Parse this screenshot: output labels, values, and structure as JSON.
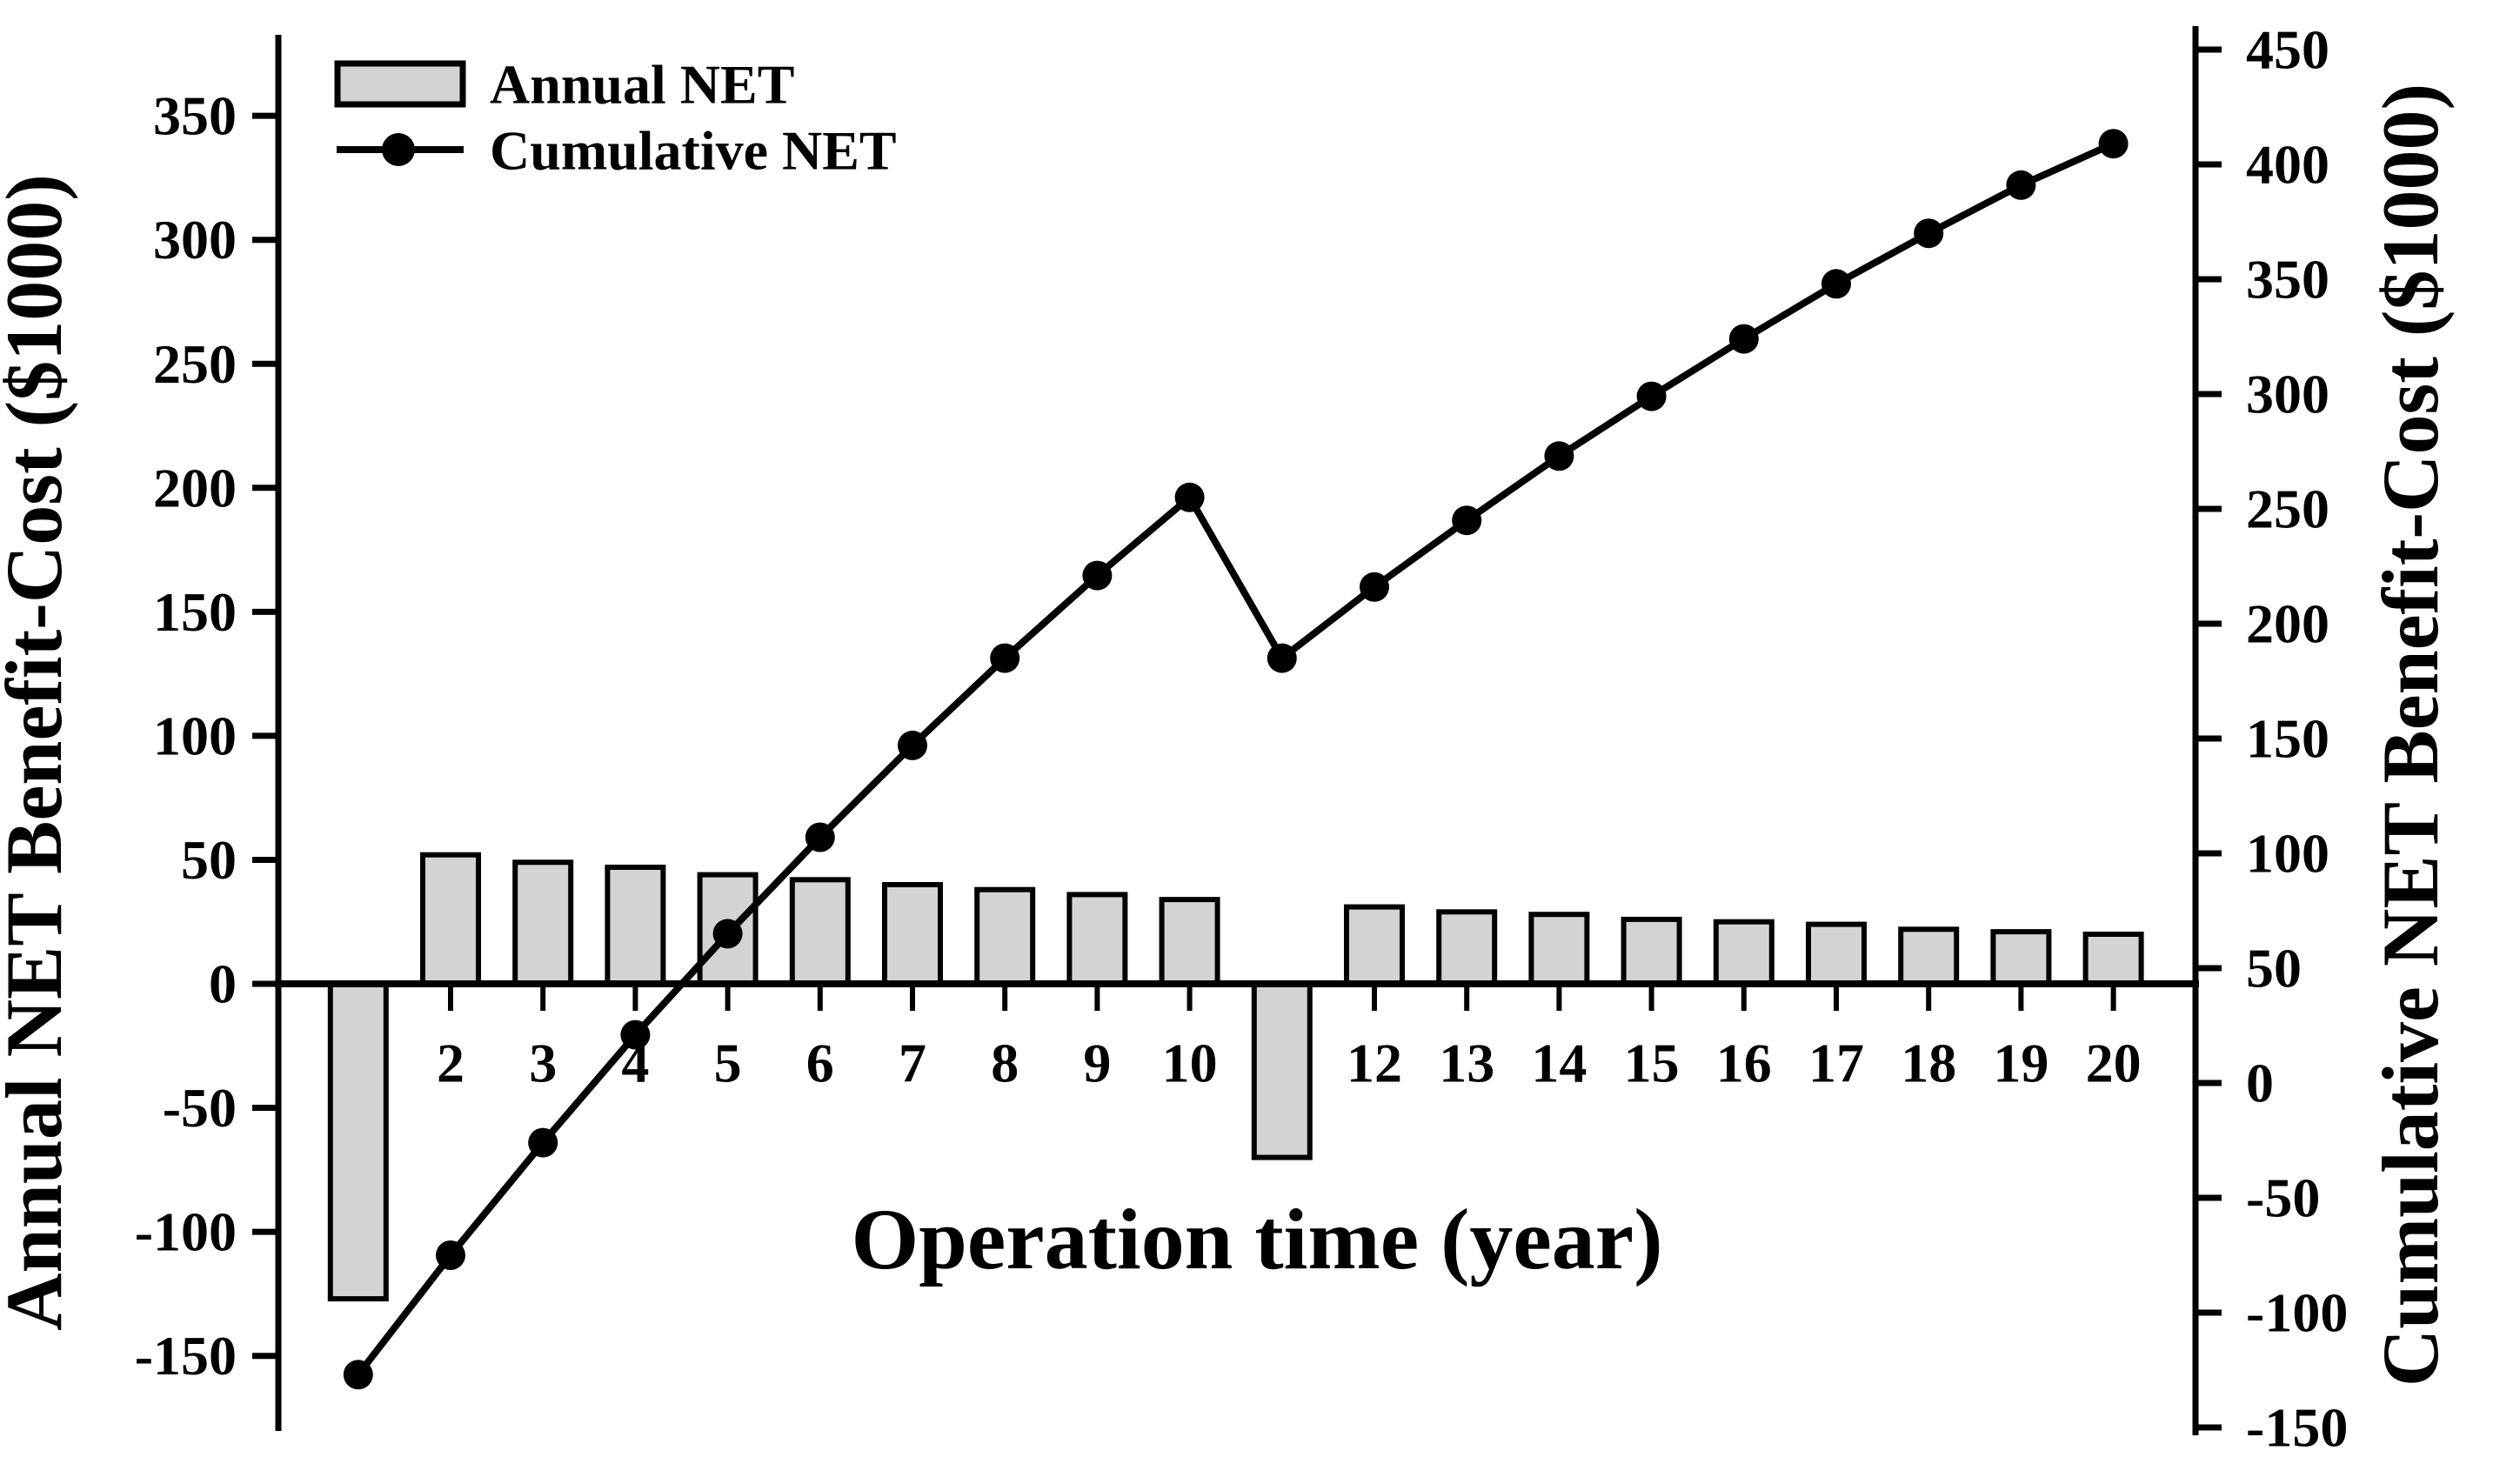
{
  "figure": {
    "background": "#ffffff",
    "ink_color": "#000000",
    "bar_fill": "#d3d3d3"
  },
  "legend": {
    "items": [
      {
        "label": "Annual NET",
        "swatch": "bar"
      },
      {
        "label": "Cumulative NET",
        "swatch": "line-marker"
      }
    ]
  },
  "chart_data": {
    "type": "bar",
    "subtype": "combo-bar-line-dual-axis",
    "x_years": [
      1,
      2,
      3,
      4,
      5,
      6,
      7,
      8,
      9,
      10,
      11,
      12,
      13,
      14,
      15,
      16,
      17,
      18,
      19,
      20
    ],
    "series": [
      {
        "name": "Annual NET",
        "type": "bar",
        "axis": "left",
        "values": [
          -127,
          52,
          49,
          47,
          44,
          42,
          40,
          38,
          36,
          34,
          -70,
          31,
          29,
          28,
          26,
          25,
          24,
          22,
          21,
          20
        ]
      },
      {
        "name": "Cumulative NET",
        "type": "line",
        "axis": "right",
        "marker": "filled-circle",
        "values": [
          -127,
          -75,
          -26,
          21,
          65,
          107,
          147,
          185,
          221,
          255,
          185,
          216,
          245,
          273,
          299,
          324,
          348,
          370,
          391,
          409
        ]
      }
    ],
    "x_axis": {
      "title": "Operation time (year)",
      "tick_label_years": [
        2,
        3,
        4,
        5,
        6,
        7,
        8,
        9,
        10,
        12,
        13,
        14,
        15,
        16,
        17,
        18,
        19,
        20
      ],
      "unlabeled_years": [
        1,
        11
      ]
    },
    "left_axis": {
      "title": "Annual NET Benefit-Cost ($1000)",
      "ticks": [
        350,
        300,
        250,
        200,
        150,
        100,
        50,
        0,
        -50,
        -100,
        -150
      ],
      "range": [
        -150,
        350
      ]
    },
    "right_axis": {
      "title": "Cumulative NET Benefit-Cost ($1000)",
      "ticks": [
        450,
        400,
        350,
        300,
        250,
        200,
        150,
        100,
        50,
        0,
        -50,
        -100,
        -150
      ],
      "range": [
        -150,
        450
      ]
    },
    "grid": false,
    "legend_position": "upper-left-inside"
  }
}
